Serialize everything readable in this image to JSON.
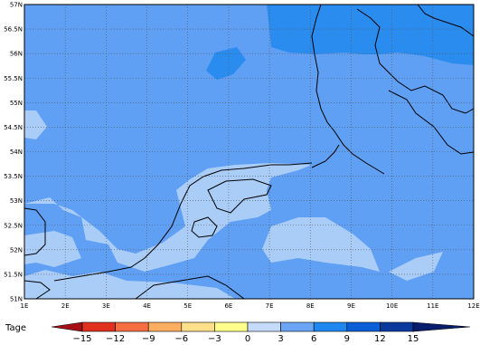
{
  "map": {
    "lat_labels": [
      "57N",
      "56.5N",
      "56N",
      "55.5N",
      "55N",
      "54.5N",
      "54N",
      "53.5N",
      "53N",
      "52.5N",
      "52N",
      "51.5N",
      "51N"
    ],
    "lon_labels": [
      "1E",
      "2E",
      "3E",
      "4E",
      "5E",
      "6E",
      "7E",
      "8E",
      "9E",
      "10E",
      "11E",
      "12E"
    ]
  },
  "colorbar": {
    "title": "Tage",
    "labels": [
      "−15",
      "−12",
      "−9",
      "−6",
      "−3",
      "0",
      "3",
      "6",
      "9",
      "12",
      "15"
    ]
  }
}
